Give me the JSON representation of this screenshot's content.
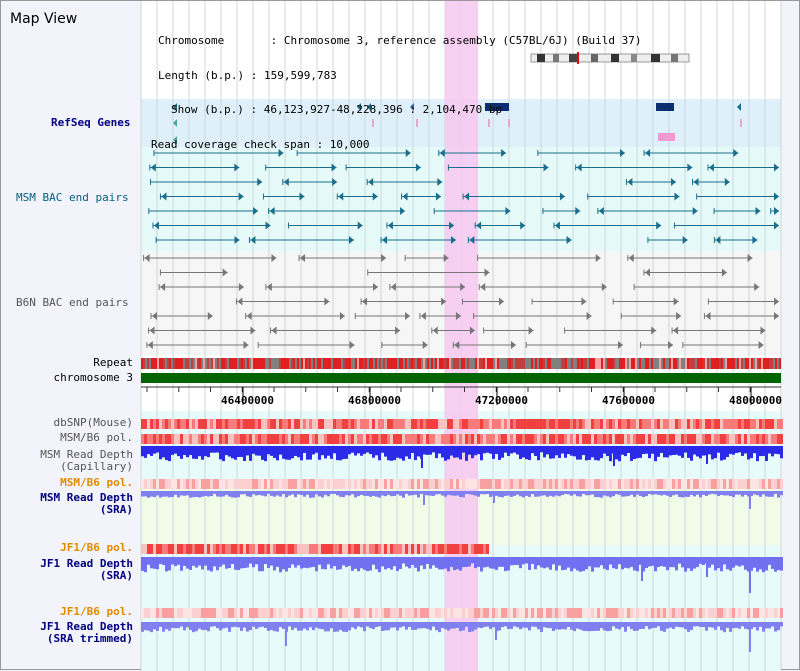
{
  "title": "Map View",
  "info": {
    "chromosome": "Chromosome       : Chromosome 3, reference assembly (C57BL/6J) (Build 37)",
    "length": "Length (b.p.) : 159,599,783",
    "show": "Show (b.p.) : 46,123,927-48,228,396 : 2,104,470 bp",
    "span": "Read coverage check span : 10,000"
  },
  "tracks": {
    "refseq": "RefSeq Genes",
    "msm_bac": "MSM BAC end pairs",
    "b6n_bac": "B6N BAC end pairs",
    "repeat": "Repeat",
    "chromosome": "chromosome 3",
    "dbsnp": "dbSNP(Mouse)",
    "msm_b6_pol": "MSM/B6 pol.",
    "msm_depth_cap": "MSM Read Depth\n(Capillary)",
    "msm_b6_pol2": "MSM/B6 pol.",
    "msm_depth_sra": "MSM Read Depth\n(SRA)",
    "jf1_b6_pol": "JF1/B6 pol.",
    "jf1_depth_sra": "JF1 Read Depth\n(SRA)",
    "jf1_b6_pol2": "JF1/B6 pol.",
    "jf1_depth_trim": "JF1 Read Depth\n(SRA trimmed)"
  },
  "axis": {
    "ticks": [
      "46400000",
      "46800000",
      "47200000",
      "47600000",
      "48000000"
    ]
  },
  "colors": {
    "highlight": "#f7c8f0",
    "refseq_bg": "#dff0fb",
    "msm_bg": "#e6fafa",
    "depth_blue": "#3333ee",
    "depth_light": "#8080f0",
    "chromosome": "#006400",
    "teal": "#1a6e8c"
  }
}
